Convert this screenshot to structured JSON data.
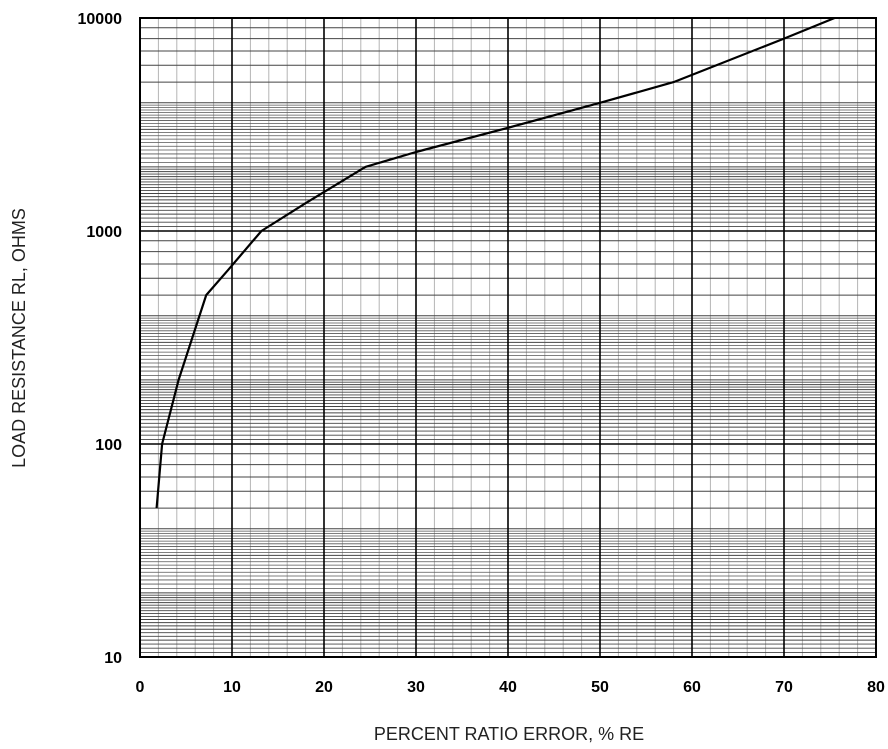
{
  "chart_data": {
    "type": "line",
    "title": "",
    "xlabel": "PERCENT RATIO ERROR, % RE",
    "ylabel": "LOAD RESISTANCE RL, OHMS",
    "xlim": [
      0,
      80
    ],
    "ylim": [
      10,
      10000
    ],
    "yscale": "log",
    "grid": true,
    "legend": "none",
    "x_ticks": [
      "0",
      "10",
      "20",
      "30",
      "40",
      "50",
      "60",
      "70",
      "80"
    ],
    "y_ticks": [
      "10",
      "100",
      "1000",
      "10000"
    ],
    "series": [
      {
        "color": "#000000",
        "points": [
          {
            "x": 1.8,
            "y": 50
          },
          {
            "x": 2.4,
            "y": 100
          },
          {
            "x": 4.2,
            "y": 200
          },
          {
            "x": 7.2,
            "y": 500
          },
          {
            "x": 9.5,
            "y": 650
          },
          {
            "x": 13.2,
            "y": 1000
          },
          {
            "x": 18.0,
            "y": 1350
          },
          {
            "x": 24.5,
            "y": 2000
          },
          {
            "x": 30.0,
            "y": 2350
          },
          {
            "x": 40.0,
            "y": 3050
          },
          {
            "x": 50.0,
            "y": 4000
          },
          {
            "x": 58.0,
            "y": 5000
          },
          {
            "x": 70.0,
            "y": 8000
          },
          {
            "x": 75.5,
            "y": 10000
          }
        ]
      }
    ]
  }
}
